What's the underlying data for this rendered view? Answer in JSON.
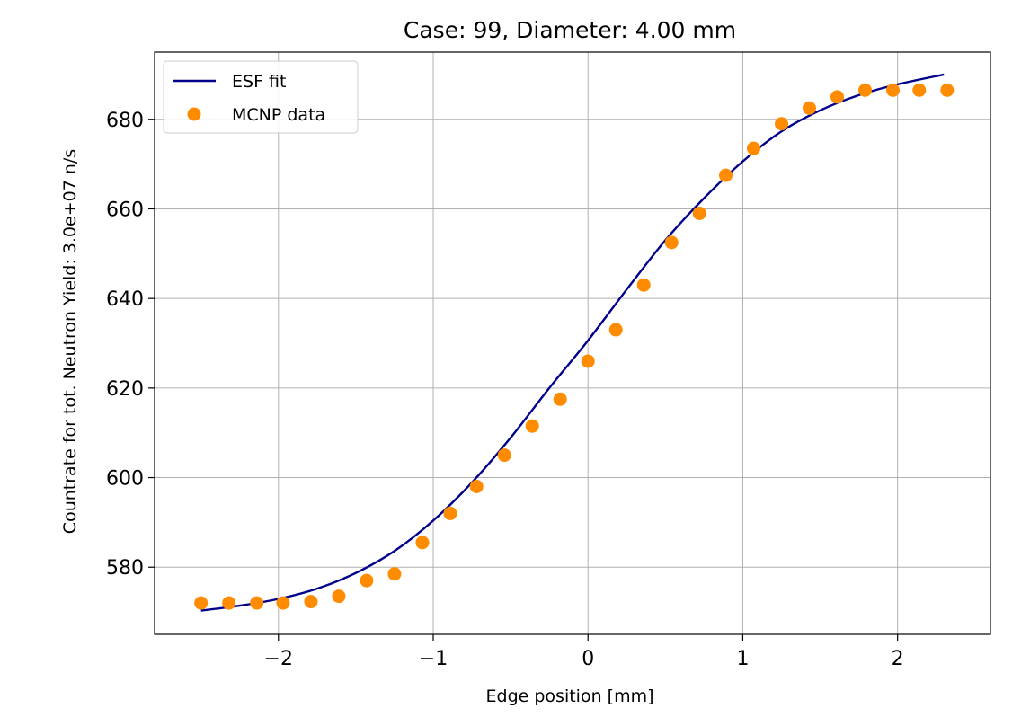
{
  "chart_data": {
    "type": "line",
    "title": "Case: 99, Diameter: 4.00 mm",
    "xlabel": "Edge position [mm]",
    "ylabel": "Countrate for tot. Neutron Yield: 3.0e+07 n/s",
    "xlim": [
      -2.8,
      2.6
    ],
    "ylim": [
      565,
      695
    ],
    "xticks": [
      -2,
      -1,
      0,
      1,
      2
    ],
    "xtick_labels": [
      "−2",
      "−1",
      "0",
      "1",
      "2"
    ],
    "yticks": [
      580,
      600,
      620,
      640,
      660,
      680
    ],
    "ytick_labels": [
      "580",
      "600",
      "620",
      "640",
      "660",
      "680"
    ],
    "grid": true,
    "legend": "upper-left",
    "series": [
      {
        "name": "ESF fit",
        "kind": "line",
        "color": "#00008b",
        "x": [
          -2.5,
          -2.25,
          -2.0,
          -1.75,
          -1.5,
          -1.25,
          -1.0,
          -0.75,
          -0.5,
          -0.25,
          0.0,
          0.25,
          0.5,
          0.75,
          1.0,
          1.25,
          1.5,
          1.75,
          2.0,
          2.3
        ],
        "y": [
          570.3,
          571.4,
          572.9,
          575.2,
          578.7,
          583.6,
          590.4,
          598.9,
          608.9,
          620.0,
          630.6,
          642.0,
          653.0,
          662.4,
          670.6,
          677.3,
          682.0,
          685.4,
          687.8,
          690.0
        ]
      },
      {
        "name": "MCNP data",
        "kind": "scatter",
        "color": "#ff8c00",
        "x": [
          -2.5,
          -2.32,
          -2.14,
          -1.97,
          -1.79,
          -1.61,
          -1.43,
          -1.25,
          -1.07,
          -0.89,
          -0.72,
          -0.54,
          -0.36,
          -0.18,
          0.0,
          0.18,
          0.36,
          0.54,
          0.72,
          0.89,
          1.07,
          1.25,
          1.43,
          1.61,
          1.79,
          1.97,
          2.14,
          2.32
        ],
        "y": [
          572.0,
          572.0,
          572.0,
          572.0,
          572.3,
          573.5,
          577.0,
          578.5,
          585.5,
          592.0,
          598.0,
          605.0,
          611.5,
          617.5,
          626.0,
          633.0,
          643.0,
          652.5,
          659.0,
          667.5,
          673.5,
          679.0,
          682.5,
          685.0,
          686.5,
          686.5,
          686.5,
          686.5
        ]
      }
    ]
  }
}
